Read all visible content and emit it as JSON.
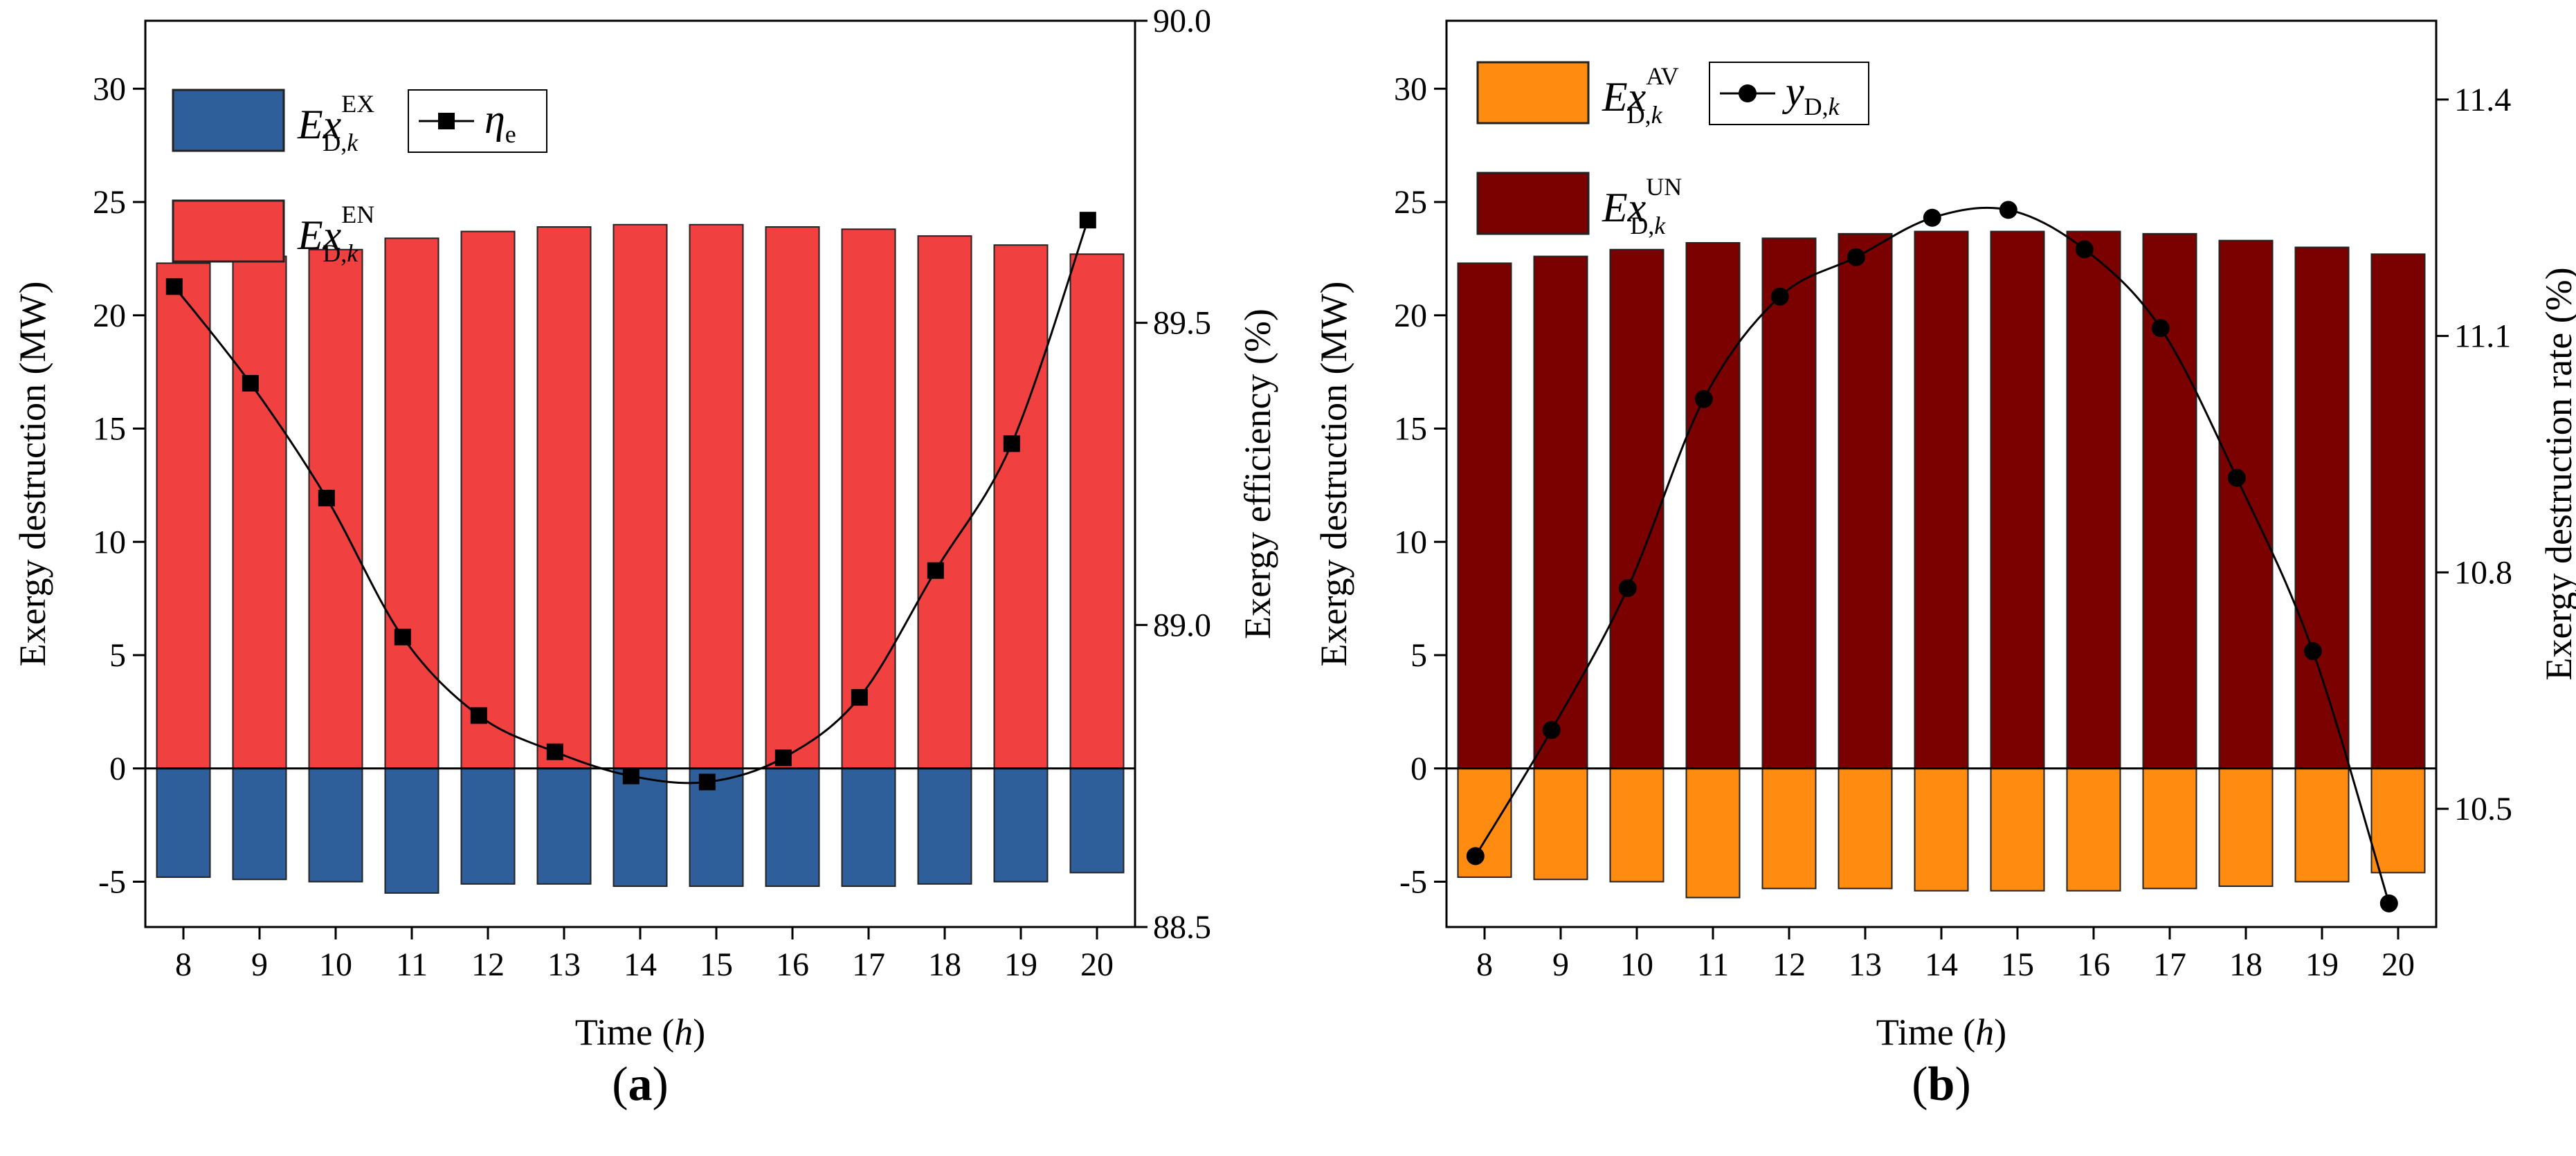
{
  "chart_data": [
    {
      "panel_label": "(a)",
      "panel_letter": "a",
      "type": "bar+line",
      "x": [
        8,
        9,
        10,
        11,
        12,
        13,
        14,
        15,
        16,
        17,
        18,
        19,
        20
      ],
      "xlabel": {
        "prefix": "Time (",
        "var": "h",
        "suffix": ")"
      },
      "ylabel": "Exergy destruction (MW)",
      "ylim": [
        -7,
        33
      ],
      "yticks": [
        -5,
        0,
        5,
        10,
        15,
        20,
        25,
        30
      ],
      "y2label": "Exergy efficiency (%)",
      "y2lim": [
        88.5,
        90.0
      ],
      "y2ticks": [
        "88.5",
        "89.0",
        "89.5",
        "90.0"
      ],
      "y2tick_values": [
        88.5,
        89.0,
        89.5,
        90.0
      ],
      "series": [
        {
          "name": "Ex^EX_D,k",
          "legend_main": "Ex",
          "legend_sup": "EX",
          "legend_sub": "D,",
          "legend_sub_italic": "k",
          "kind": "bar",
          "color": "#2E5F9A",
          "values": [
            -4.8,
            -4.9,
            -5.0,
            -5.5,
            -5.1,
            -5.1,
            -5.2,
            -5.2,
            -5.2,
            -5.2,
            -5.1,
            -5.0,
            -4.6
          ]
        },
        {
          "name": "Ex^EN_D,k",
          "legend_main": "Ex",
          "legend_sup": "EN",
          "legend_sub": "D,",
          "legend_sub_italic": "k",
          "kind": "bar",
          "color": "#F04040",
          "values": [
            22.3,
            22.6,
            22.9,
            23.4,
            23.7,
            23.9,
            24.0,
            24.0,
            23.9,
            23.8,
            23.5,
            23.1,
            22.7
          ]
        },
        {
          "name": "eta_e",
          "legend_main": "η",
          "legend_sub": "e",
          "kind": "line",
          "marker": "square",
          "axis": "right",
          "values": [
            89.56,
            89.4,
            89.21,
            88.98,
            88.85,
            88.79,
            88.75,
            88.74,
            88.78,
            88.88,
            89.09,
            89.3,
            89.67
          ]
        }
      ]
    },
    {
      "panel_label": "(b)",
      "panel_letter": "b",
      "type": "bar+line",
      "x": [
        8,
        9,
        10,
        11,
        12,
        13,
        14,
        15,
        16,
        17,
        18,
        19,
        20
      ],
      "xlabel": {
        "prefix": "Time (",
        "var": "h",
        "suffix": ")"
      },
      "ylabel": "Exergy destruction (MW)",
      "ylim": [
        -7,
        33
      ],
      "yticks": [
        -5,
        0,
        5,
        10,
        15,
        20,
        25,
        30
      ],
      "y2label": "Exergy destruction rate (%)",
      "y2lim": [
        10.35,
        11.5
      ],
      "y2ticks": [
        "10.5",
        "10.8",
        "11.1",
        "11.4"
      ],
      "y2tick_values": [
        10.5,
        10.8,
        11.1,
        11.4
      ],
      "series": [
        {
          "name": "Ex^AV_D,k",
          "legend_main": "Ex",
          "legend_sup": "AV",
          "legend_sub": "D,",
          "legend_sub_italic": "k",
          "kind": "bar",
          "color": "#FF8C10",
          "values": [
            -4.8,
            -4.9,
            -5.0,
            -5.7,
            -5.3,
            -5.3,
            -5.4,
            -5.4,
            -5.4,
            -5.3,
            -5.2,
            -5.0,
            -4.6
          ]
        },
        {
          "name": "Ex^UN_D,k",
          "legend_main": "Ex",
          "legend_sup": "UN",
          "legend_sub": "D,",
          "legend_sub_italic": "k",
          "kind": "bar",
          "color": "#7B0000",
          "values": [
            22.3,
            22.6,
            22.9,
            23.2,
            23.4,
            23.6,
            23.7,
            23.7,
            23.7,
            23.6,
            23.3,
            23.0,
            22.7
          ]
        },
        {
          "name": "y_D,k",
          "legend_main": "y",
          "legend_sub": "D,",
          "legend_sub_italic": "k",
          "kind": "line",
          "marker": "circle",
          "axis": "right",
          "values": [
            10.44,
            10.6,
            10.78,
            11.02,
            11.15,
            11.2,
            11.25,
            11.26,
            11.21,
            11.11,
            10.92,
            10.7,
            10.38
          ]
        }
      ]
    }
  ]
}
